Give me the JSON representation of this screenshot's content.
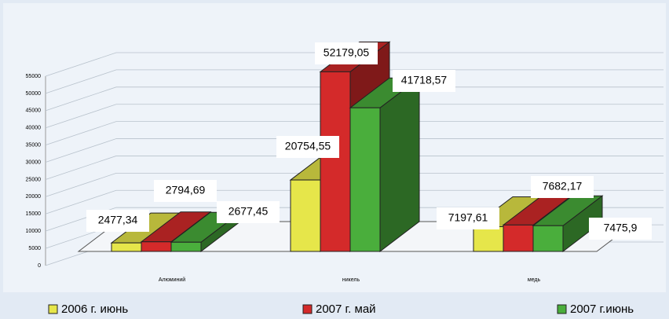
{
  "chart_data": {
    "type": "bar3d",
    "categories": [
      "Алюминий",
      "никель",
      "медь"
    ],
    "series": [
      {
        "name": "2006 г. июнь",
        "color": "#e6e64a",
        "values": [
          2477.34,
          20754.55,
          7197.61
        ],
        "value_labels": [
          "2477,34",
          "20754,55",
          "7197,61"
        ]
      },
      {
        "name": "2007 г. май",
        "color": "#d42a2a",
        "values": [
          2794.69,
          52179.05,
          7682.17
        ],
        "value_labels": [
          "2794,69",
          "52179,05",
          "7682,17"
        ]
      },
      {
        "name": "2007 г.июнь",
        "color": "#4aae3c",
        "values": [
          2677.45,
          41718.57,
          7475.9
        ],
        "value_labels": [
          "2677,45",
          "41718,57",
          "7475,9"
        ]
      }
    ],
    "ylim": [
      0,
      55000
    ],
    "yticks": [
      0,
      5000,
      10000,
      15000,
      20000,
      25000,
      30000,
      35000,
      40000,
      45000,
      50000,
      55000
    ],
    "grid": true,
    "legend": "bottom"
  }
}
